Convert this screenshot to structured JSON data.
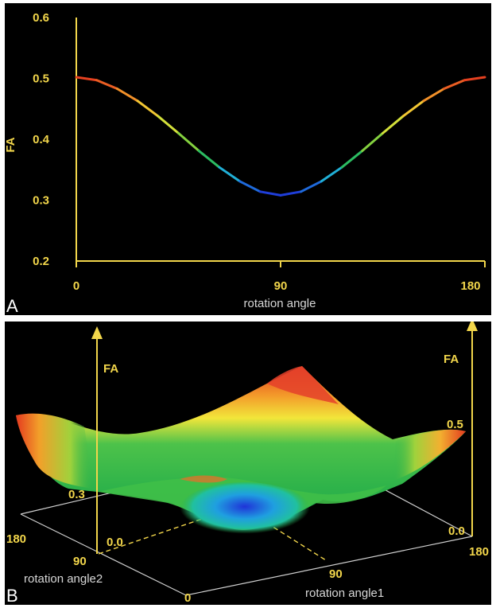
{
  "chart_data": [
    {
      "panel": "A",
      "type": "line",
      "xlabel": "rotation angle",
      "ylabel": "FA",
      "xlim": [
        0,
        180
      ],
      "ylim": [
        0.2,
        0.6
      ],
      "xticks": [
        "0",
        "90",
        "180"
      ],
      "yticks": [
        "0.2",
        "0.3",
        "0.4",
        "0.5",
        "0.6"
      ],
      "grid": false,
      "colormap": [
        "#1f33d8",
        "#1faee0",
        "#2fbf4a",
        "#a8d83a",
        "#f2e63a",
        "#f39a2a",
        "#e43a1f"
      ],
      "axis_color": "#f2d64b",
      "x": [
        0,
        9,
        18,
        27,
        36,
        45,
        54,
        63,
        72,
        81,
        90,
        99,
        108,
        117,
        126,
        135,
        144,
        153,
        162,
        171,
        180
      ],
      "y": [
        0.502,
        0.497,
        0.483,
        0.463,
        0.438,
        0.41,
        0.381,
        0.354,
        0.331,
        0.314,
        0.308,
        0.314,
        0.331,
        0.354,
        0.381,
        0.41,
        0.438,
        0.463,
        0.483,
        0.497,
        0.502
      ]
    },
    {
      "panel": "B",
      "type": "surface",
      "zlabel": "FA",
      "xlabel": "rotation angle1",
      "ylabel": "rotation angle2",
      "xticks": [
        "0",
        "90",
        "180"
      ],
      "yticks": [
        "180",
        "90"
      ],
      "zticks_left": [
        "0.3",
        "0.0"
      ],
      "zticks_right": [
        "0.5",
        "0.0"
      ]
    }
  ],
  "panels": {
    "a_letter": "A",
    "b_letter": "B"
  }
}
